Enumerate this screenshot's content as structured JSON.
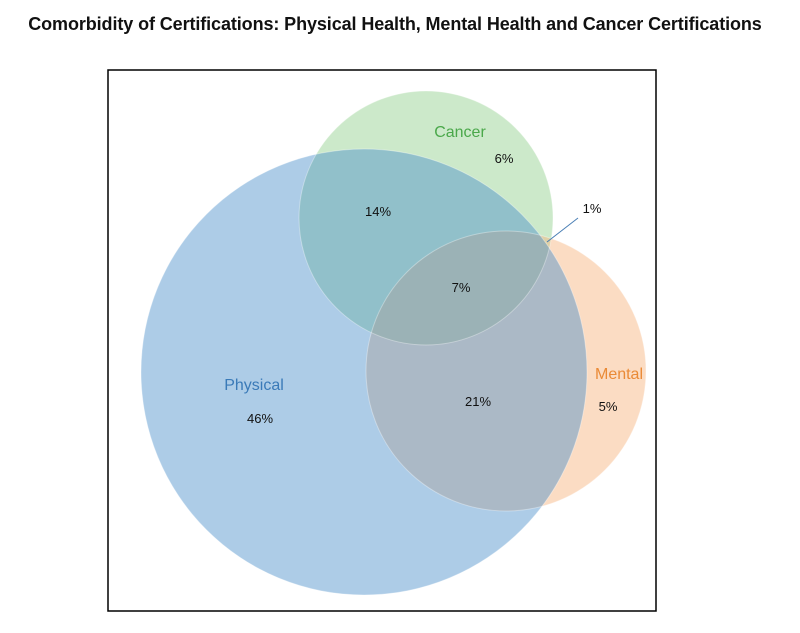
{
  "title": "Comorbidity of Certifications: Physical Health, Mental Health and Cancer Certifications",
  "sets": {
    "physical": {
      "label": "Physical",
      "color": "#4a8fc9",
      "label_color": "#3a7ab8"
    },
    "cancer": {
      "label": "Cancer",
      "color": "#8fce8a",
      "label_color": "#4aa84a"
    },
    "mental": {
      "label": "Mental",
      "color": "#f6b27a",
      "label_color": "#ea8a36"
    }
  },
  "regions": {
    "physical_only": "46%",
    "cancer_only": "6%",
    "mental_only": "5%",
    "physical_cancer": "14%",
    "physical_mental": "21%",
    "all_three": "7%",
    "cancer_mental": "1%"
  }
}
